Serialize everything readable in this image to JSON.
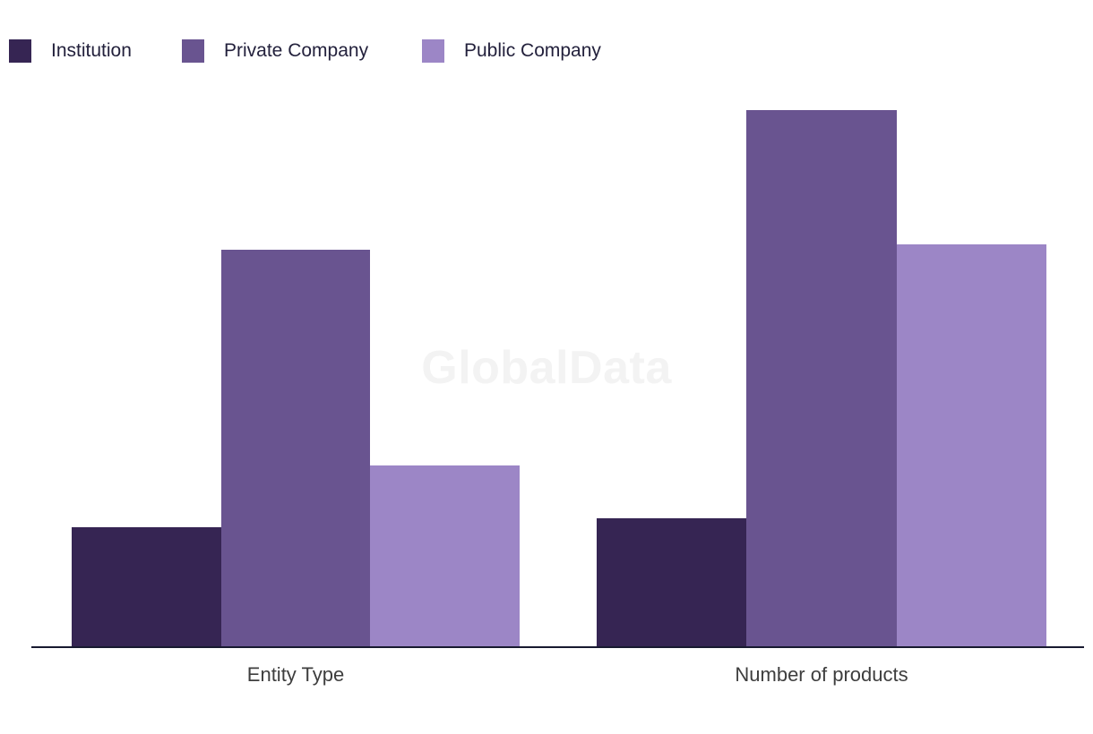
{
  "page": {
    "background": "#ffffff",
    "text_color": "#23213c",
    "axis_line_color": "#181a30",
    "category_label_color": "#3e3e3e",
    "watermark_color": "#f3f3f3"
  },
  "chart_data": {
    "type": "bar",
    "title": "",
    "xlabel": "",
    "ylabel": "",
    "categories": [
      "Entity Type",
      "Number of products"
    ],
    "series": [
      {
        "name": "Institution",
        "color": "#362553",
        "values": [
          133,
          143
        ]
      },
      {
        "name": "Private Company",
        "color": "#695490",
        "values": [
          443,
          599
        ]
      },
      {
        "name": "Public Company",
        "color": "#9c86c6",
        "values": [
          202,
          449
        ]
      }
    ],
    "value_unit": "relative bar height in plot pixels (chart shows no y-axis, ticks or gridlines)",
    "values_pct_of_max": {
      "Institution": [
        22,
        24
      ],
      "Private Company": [
        74,
        100
      ],
      "Public Company": [
        34,
        75
      ]
    },
    "ylim": [
      0,
      650
    ],
    "grid": false,
    "y_axis_visible": false,
    "legend_position": "top-left",
    "watermark": "GlobalData"
  }
}
